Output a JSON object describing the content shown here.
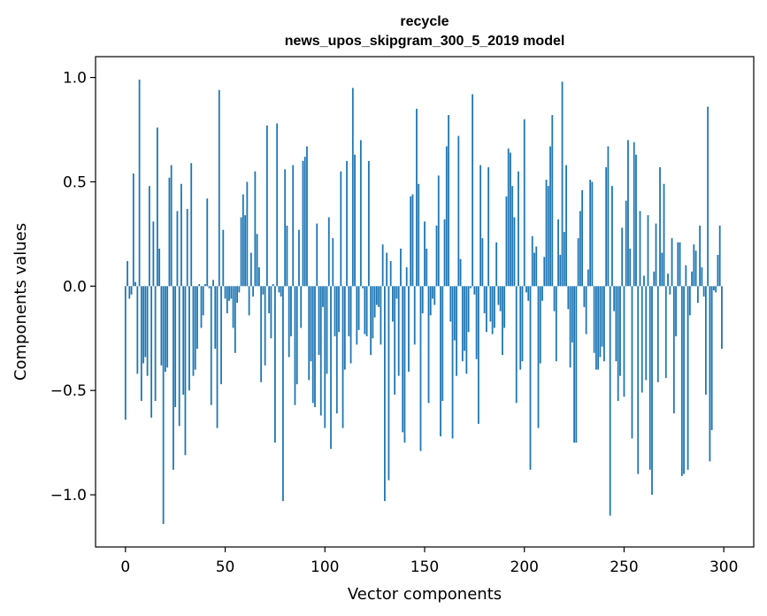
{
  "chart_data": {
    "type": "bar",
    "title": "recycle",
    "subtitle": "news_upos_skipgram_300_5_2019 model",
    "xlabel": "Vector components",
    "ylabel": "Components values",
    "xlim": [
      -15,
      315
    ],
    "ylim": [
      -1.25,
      1.1
    ],
    "xticks": [
      0,
      50,
      100,
      150,
      200,
      250,
      300
    ],
    "xtick_labels": [
      "0",
      "50",
      "100",
      "150",
      "200",
      "250",
      "300"
    ],
    "yticks": [
      -1.0,
      -0.5,
      0.0,
      0.5,
      1.0
    ],
    "ytick_labels": [
      "−1.0",
      "−0.5",
      "0.0",
      "0.5",
      "1.0"
    ],
    "bar_color": "#1f77b4",
    "grid": false,
    "values": [
      -0.64,
      0.12,
      -0.06,
      -0.04,
      0.54,
      0.02,
      -0.42,
      0.99,
      -0.55,
      -0.37,
      -0.34,
      -0.43,
      0.48,
      -0.63,
      0.31,
      -0.55,
      0.76,
      0.18,
      -0.38,
      -1.14,
      -0.41,
      -0.39,
      0.52,
      0.58,
      -0.88,
      -0.58,
      0.36,
      -0.67,
      0.49,
      -0.52,
      -0.81,
      0.37,
      -0.5,
      0.59,
      -0.43,
      -0.4,
      -0.3,
      0.01,
      -0.2,
      -0.14,
      0.01,
      0.42,
      -0.01,
      -0.57,
      0.03,
      -0.3,
      -0.68,
      0.94,
      -0.47,
      0.27,
      -0.06,
      -0.13,
      -0.07,
      -0.06,
      -0.2,
      -0.32,
      -0.08,
      -0.03,
      0.33,
      0.44,
      0.34,
      0.5,
      -0.14,
      0.16,
      -0.05,
      0.55,
      0.25,
      0.09,
      -0.46,
      -0.04,
      -0.38,
      0.77,
      -0.13,
      -0.25,
      0.01,
      -0.75,
      0.78,
      -0.03,
      -0.05,
      -1.03,
      0.56,
      0.29,
      -0.34,
      -0.24,
      0.58,
      -0.57,
      -0.47,
      0.27,
      -0.2,
      0.6,
      0.62,
      0.67,
      -0.45,
      -0.36,
      -0.56,
      -0.58,
      0.3,
      -0.33,
      -0.62,
      -0.1,
      -0.68,
      -0.42,
      0.33,
      -0.78,
      0.23,
      -0.24,
      -0.61,
      -0.22,
      0.55,
      -0.68,
      -0.4,
      0.6,
      -0.24,
      -0.37,
      0.95,
      0.63,
      -0.28,
      -0.21,
      0.7,
      -0.01,
      -0.23,
      -0.24,
      0.6,
      -0.33,
      -0.25,
      -0.15,
      -0.09,
      -0.1,
      -0.28,
      0.2,
      -1.03,
      0.16,
      -0.93,
      0.12,
      -0.17,
      -0.52,
      -0.06,
      -0.43,
      0.18,
      -0.7,
      -0.75,
      0.09,
      -0.41,
      0.43,
      0.44,
      -0.28,
      0.85,
      0.49,
      -0.79,
      -0.13,
      0.31,
      0.18,
      -0.56,
      -0.14,
      -0.06,
      -0.09,
      0.29,
      0.53,
      -0.72,
      -0.55,
      0.32,
      0.67,
      0.82,
      -0.17,
      -0.73,
      -0.26,
      -0.43,
      0.72,
      0.13,
      -0.36,
      -0.31,
      -0.42,
      -0.22,
      -0.01,
      0.92,
      -0.04,
      -0.35,
      -0.66,
      0.58,
      0.23,
      -0.13,
      -0.22,
      0.57,
      -0.17,
      -0.23,
      -0.2,
      0.21,
      -0.09,
      -0.12,
      -0.33,
      -0.2,
      0.43,
      0.66,
      0.64,
      0.48,
      0.33,
      -0.56,
      0.55,
      -0.4,
      -0.36,
      0.8,
      -0.03,
      -0.07,
      -0.88,
      0.24,
      0.16,
      0.19,
      -0.68,
      -0.37,
      -0.07,
      0.14,
      0.51,
      0.48,
      0.67,
      0.82,
      -0.12,
      -0.36,
      0.32,
      0.15,
      0.98,
      0.26,
      0.58,
      -0.11,
      -0.39,
      -0.27,
      -0.75,
      -0.75,
      0.23,
      0.36,
      0.46,
      -0.1,
      -0.23,
      0.08,
      0.51,
      0.5,
      -0.32,
      -0.4,
      -0.4,
      -0.34,
      -0.29,
      -0.36,
      0.57,
      0.67,
      -1.1,
      0.48,
      -0.12,
      -0.36,
      -0.55,
      -0.43,
      0.28,
      -0.53,
      0.41,
      0.7,
      0.18,
      -0.73,
      0.69,
      0.63,
      -0.9,
      0.36,
      -0.51,
      0.05,
      -0.45,
      0.34,
      -0.88,
      -1.0,
      0.07,
      0.3,
      -0.46,
      0.57,
      0.16,
      0.49,
      -0.44,
      0.06,
      -0.04,
      0.23,
      -0.61,
      -0.24,
      0.21,
      0.21,
      -0.91,
      -0.9,
      0.1,
      -0.88,
      -0.14,
      0.07,
      0.2,
      0.17,
      -0.08,
      0.29,
      0.09,
      -0.05,
      -0.52,
      0.86,
      -0.84,
      -0.69,
      -0.02,
      -0.03,
      0.15,
      0.29,
      -0.3
    ]
  }
}
